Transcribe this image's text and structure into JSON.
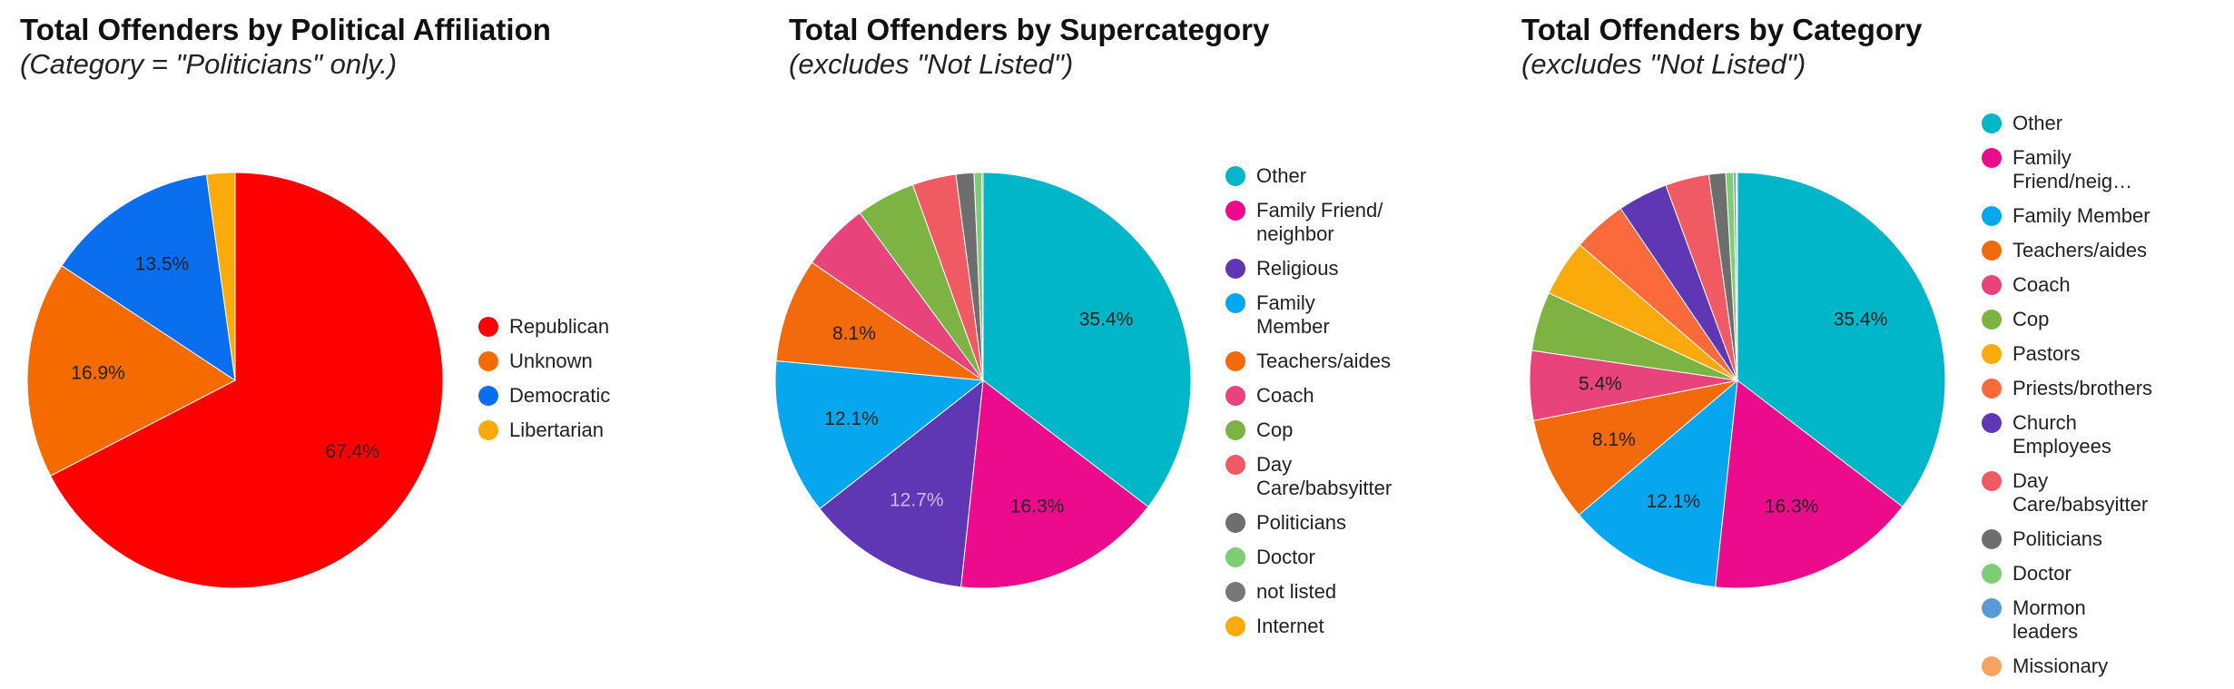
{
  "chart_data": [
    {
      "type": "pie",
      "title": "Total Offenders by Political Affiliation",
      "subtitle": "(Category = \"Politicians\" only.)",
      "legend_position": "right",
      "slices": [
        {
          "label": "Republican",
          "value": 67.4,
          "color": "#ff0000",
          "data_label": "67.4%"
        },
        {
          "label": "Unknown",
          "value": 16.9,
          "color": "#f56b00",
          "data_label": "16.9%"
        },
        {
          "label": "Democratic",
          "value": 13.5,
          "color": "#0a6fef",
          "data_label": "13.5%"
        },
        {
          "label": "Libertarian",
          "value": 2.2,
          "color": "#fbaa0c",
          "data_label": ""
        }
      ]
    },
    {
      "type": "pie",
      "title": "Total Offenders by Supercategory",
      "subtitle": "(excludes \"Not Listed\")",
      "legend_position": "right",
      "slices": [
        {
          "label": "Other",
          "value": 35.4,
          "color": "#00b6c8",
          "data_label": "35.4%"
        },
        {
          "label": "Family Friend/ neighbor",
          "value": 16.3,
          "color": "#ec0a8d",
          "data_label": "16.3%"
        },
        {
          "label": "Religious",
          "value": 12.7,
          "color": "#5f36b3",
          "data_label": "12.7%"
        },
        {
          "label": "Family Member",
          "value": 12.1,
          "color": "#06a7ef",
          "data_label": "12.1%"
        },
        {
          "label": "Teachers/aides",
          "value": 8.1,
          "color": "#f26a0b",
          "data_label": "8.1%"
        },
        {
          "label": "Coach",
          "value": 5.3,
          "color": "#e8437a",
          "data_label": ""
        },
        {
          "label": "Cop",
          "value": 4.6,
          "color": "#7cb342",
          "data_label": ""
        },
        {
          "label": "Day Care/babsyitter",
          "value": 3.4,
          "color": "#f05a63",
          "data_label": ""
        },
        {
          "label": "Politicians",
          "value": 1.4,
          "color": "#6e6e6e",
          "data_label": ""
        },
        {
          "label": "Doctor",
          "value": 0.6,
          "color": "#7ccd73",
          "data_label": ""
        },
        {
          "label": "not listed",
          "value": 0.1,
          "color": "#777777",
          "data_label": ""
        },
        {
          "label": "Internet",
          "value": 0.0,
          "color": "#fbaa0c",
          "data_label": ""
        }
      ]
    },
    {
      "type": "pie",
      "title": "Total Offenders by Category",
      "subtitle": "(excludes \"Not Listed\")",
      "legend_position": "right",
      "slices": [
        {
          "label": "Other",
          "value": 35.4,
          "color": "#00b6c8",
          "data_label": "35.4%"
        },
        {
          "label": "Family Friend/neig…",
          "value": 16.3,
          "color": "#ec0a8d",
          "data_label": "16.3%"
        },
        {
          "label": "Family Member",
          "value": 12.1,
          "color": "#06a7ef",
          "data_label": "12.1%"
        },
        {
          "label": "Teachers/aides",
          "value": 8.1,
          "color": "#f26a0b",
          "data_label": "8.1%"
        },
        {
          "label": "Coach",
          "value": 5.4,
          "color": "#e8437a",
          "data_label": "5.4%"
        },
        {
          "label": "Cop",
          "value": 4.6,
          "color": "#7cb342",
          "data_label": ""
        },
        {
          "label": "Pastors",
          "value": 4.4,
          "color": "#fbaa0c",
          "data_label": ""
        },
        {
          "label": "Priests/brothers",
          "value": 4.2,
          "color": "#fb6a3b",
          "data_label": ""
        },
        {
          "label": "Church Employees",
          "value": 3.9,
          "color": "#5f36b3",
          "data_label": ""
        },
        {
          "label": "Day Care/babsyitter",
          "value": 3.4,
          "color": "#f05a63",
          "data_label": ""
        },
        {
          "label": "Politicians",
          "value": 1.3,
          "color": "#6e6e6e",
          "data_label": ""
        },
        {
          "label": "Doctor",
          "value": 0.6,
          "color": "#7ccd73",
          "data_label": ""
        },
        {
          "label": "Mormon leaders",
          "value": 0.2,
          "color": "#5a9bd5",
          "data_label": ""
        },
        {
          "label": "Missionary",
          "value": 0.1,
          "color": "#f4a460",
          "data_label": ""
        }
      ]
    }
  ]
}
